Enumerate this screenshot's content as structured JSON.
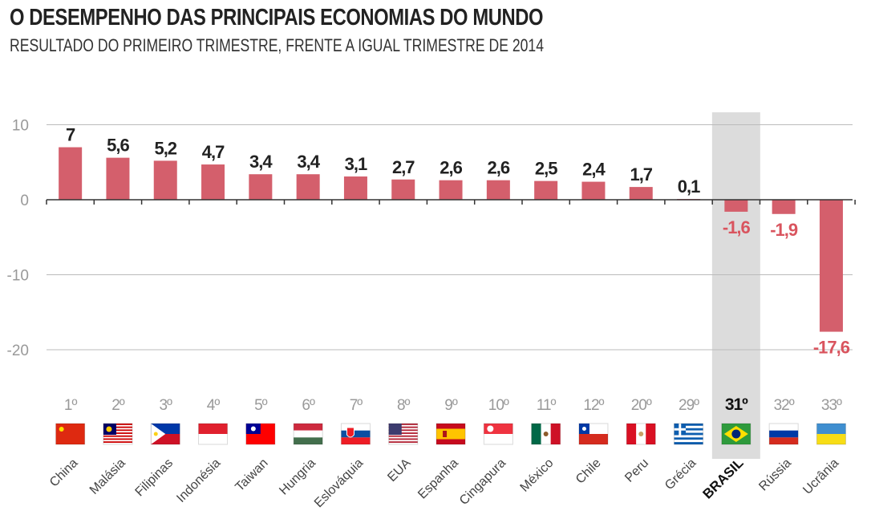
{
  "chart_data": {
    "type": "bar",
    "title": "O DESEMPENHO DAS PRINCIPAIS ECONOMIAS DO MUNDO",
    "subtitle": "RESULTADO DO PRIMEIRO TRIMESTRE, FRENTE A IGUAL TRIMESTRE DE 2014",
    "xlabel": "",
    "ylabel": "",
    "ylim": [
      -27,
      11
    ],
    "yticks": [
      10,
      0,
      -10,
      -20
    ],
    "ytick_labels": [
      "10",
      "0",
      "-10",
      "-20"
    ],
    "grid": true,
    "highlight_category": "BRASIL",
    "colors": {
      "bar": "#d45f6c",
      "positive_label": "#222222",
      "negative_label": "#d9545e",
      "highlight_band": "#dcdcdc",
      "rank": "#999999"
    },
    "categories": [
      "China",
      "Malásia",
      "Filipinas",
      "Indonésia",
      "Taiwan",
      "Hungria",
      "Eslováquia",
      "EUA",
      "Espanha",
      "Cingapura",
      "México",
      "Chile",
      "Peru",
      "Grécia",
      "BRASIL",
      "Rússia",
      "Ucrânia"
    ],
    "values": [
      7,
      5.6,
      5.2,
      4.7,
      3.4,
      3.4,
      3.1,
      2.7,
      2.6,
      2.6,
      2.5,
      2.4,
      1.7,
      0.1,
      -1.6,
      -1.9,
      -17.6
    ],
    "data_labels": [
      "7",
      "5,6",
      "5,2",
      "4,7",
      "3,4",
      "3,4",
      "3,1",
      "2,7",
      "2,6",
      "2,6",
      "2,5",
      "2,4",
      "1,7",
      "0,1",
      "-1,6",
      "-1,9",
      "-17,6"
    ],
    "ranks": [
      "1º",
      "2º",
      "3º",
      "4º",
      "5º",
      "6º",
      "7º",
      "8º",
      "9º",
      "10º",
      "11º",
      "12º",
      "20º",
      "29º",
      "31º",
      "32º",
      "33º"
    ],
    "flags": [
      "china-flag-icon",
      "malaysia-flag-icon",
      "philippines-flag-icon",
      "indonesia-flag-icon",
      "taiwan-flag-icon",
      "hungary-flag-icon",
      "slovakia-flag-icon",
      "usa-flag-icon",
      "spain-flag-icon",
      "singapore-flag-icon",
      "mexico-flag-icon",
      "chile-flag-icon",
      "peru-flag-icon",
      "greece-flag-icon",
      "brazil-flag-icon",
      "russia-flag-icon",
      "ukraine-flag-icon"
    ]
  }
}
